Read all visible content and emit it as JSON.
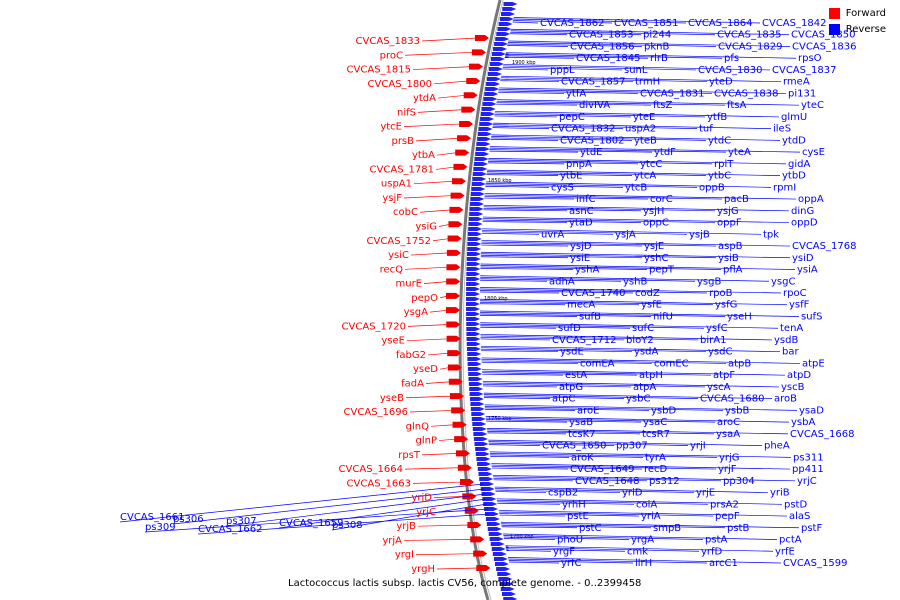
{
  "legend": {
    "forward": {
      "label": "Forward",
      "color": "#ff0000"
    },
    "reverse": {
      "label": "Reverse",
      "color": "#0000ff"
    }
  },
  "caption": "Lactococcus lactis subsp. lactis CV56, complete genome. - 0..2399458",
  "ruler": [
    "1900 kbp",
    "1850 kbp",
    "1800 kbp",
    "1750 kbp",
    "1700 kbp"
  ],
  "forward_genes": [
    "CVCAS_1833",
    "proC",
    "CVCAS_1815",
    "CVCAS_1800",
    "ytdA",
    "nifS",
    "ytcE",
    "prsB",
    "ytbA",
    "CVCAS_1781",
    "uspA1",
    "ysjF",
    "cobC",
    "ysiG",
    "CVCAS_1752",
    "ysiC",
    "recQ",
    "murE",
    "pepO",
    "ysgA",
    "CVCAS_1720",
    "yseE",
    "fabG2",
    "yseD",
    "fadA",
    "yseB",
    "CVCAS_1696",
    "glnQ",
    "glnP",
    "rpsT",
    "CVCAS_1664",
    "CVCAS_1663",
    "yrjD",
    "yrjC",
    "yrjB",
    "yrjA",
    "yrgI",
    "yrgH"
  ],
  "reverse_left_genes": [
    "CVCAS_1661",
    "ps306",
    "ps307",
    "CVCAS_1659",
    "ps308",
    "ps309",
    "CVCAS_1662"
  ],
  "reverse_genes": [
    "CVCAS_1862",
    "CVCAS_1851",
    "CVCAS_1864",
    "CVCAS_1842",
    "CVCAS_1853",
    "pi244",
    "CVCAS_1835",
    "CVCAS_1850",
    "CVCAS_1856",
    "pknB",
    "CVCAS_1829",
    "CVCAS_1836",
    "CVCAS_1845",
    "rlrB",
    "pfs",
    "rpsO",
    "pppL",
    "sunL",
    "CVCAS_1830",
    "CVCAS_1837",
    "CVCAS_1857",
    "trmH",
    "yteD",
    "rmeA",
    "ytfA",
    "CVCAS_1831",
    "CVCAS_1838",
    "pi131",
    "divIVA",
    "ftsZ",
    "ftsA",
    "yteC",
    "pepC",
    "yteE",
    "ytfB",
    "glmU",
    "CVCAS_1832",
    "uspA2",
    "tuf",
    "ileS",
    "CVCAS_1802",
    "yteB",
    "ytdC",
    "ytdD",
    "ytdE",
    "ytdF",
    "yteA",
    "cysE",
    "pnpA",
    "ytcC",
    "rplT",
    "gidA",
    "ytbE",
    "ytcA",
    "ytbC",
    "ytbD",
    "cysS",
    "ytcB",
    "oppB",
    "rpmI",
    "infC",
    "corC",
    "pacB",
    "oppA",
    "asnC",
    "ysjH",
    "ysjG",
    "dinG",
    "ytaD",
    "oppC",
    "oppF",
    "oppD",
    "uvrA",
    "ysjA",
    "ysjB",
    "tpk",
    "ysjD",
    "ysjE",
    "aspB",
    "CVCAS_1768",
    "ysiE",
    "yshC",
    "ysiB",
    "ysiD",
    "yshA",
    "pepT",
    "pflA",
    "ysiA",
    "adhA",
    "yshB",
    "ysgB",
    "ysgC",
    "CVCAS_1740",
    "codZ",
    "rpoB",
    "rpoC",
    "mecA",
    "ysfE",
    "ysfG",
    "ysfF",
    "sufB",
    "nifU",
    "yseH",
    "sufS",
    "sufD",
    "sufC",
    "ysfC",
    "tenA",
    "CVCAS_1712",
    "bioY2",
    "birA1",
    "ysdB",
    "ysdE",
    "ysdA",
    "ysdC",
    "bar",
    "comEA",
    "comEC",
    "atpB",
    "atpE",
    "estA",
    "atpH",
    "atpF",
    "atpD",
    "atpG",
    "atpA",
    "yscA",
    "yscB",
    "atpC",
    "ysbC",
    "CVCAS_1680",
    "aroB",
    "aroE",
    "ysbD",
    "ysbB",
    "ysaD",
    "ysaB",
    "ysaC",
    "aroC",
    "ysbA",
    "tcsK7",
    "tcsR7",
    "ysaA",
    "CVCAS_1668",
    "CVCAS_1650",
    "pp307",
    "yrjI",
    "pheA",
    "aroK",
    "tyrA",
    "yrjG",
    "ps311",
    "CVCAS_1649",
    "recD",
    "yrjF",
    "pp411",
    "CVCAS_1648",
    "ps312",
    "pp304",
    "yrjC",
    "cspB2",
    "yriD",
    "yrjE",
    "yriB",
    "yrhH",
    "coiA",
    "prsA2",
    "pstD",
    "pstE",
    "yriA",
    "pepF",
    "alaS",
    "pstC",
    "smpB",
    "pstB",
    "pstF",
    "phoU",
    "yrgA",
    "pstA",
    "pctA",
    "yrgF",
    "cmk",
    "yrfD",
    "yrfE",
    "yrfC",
    "llrH",
    "arcC1",
    "CVCAS_1599"
  ]
}
